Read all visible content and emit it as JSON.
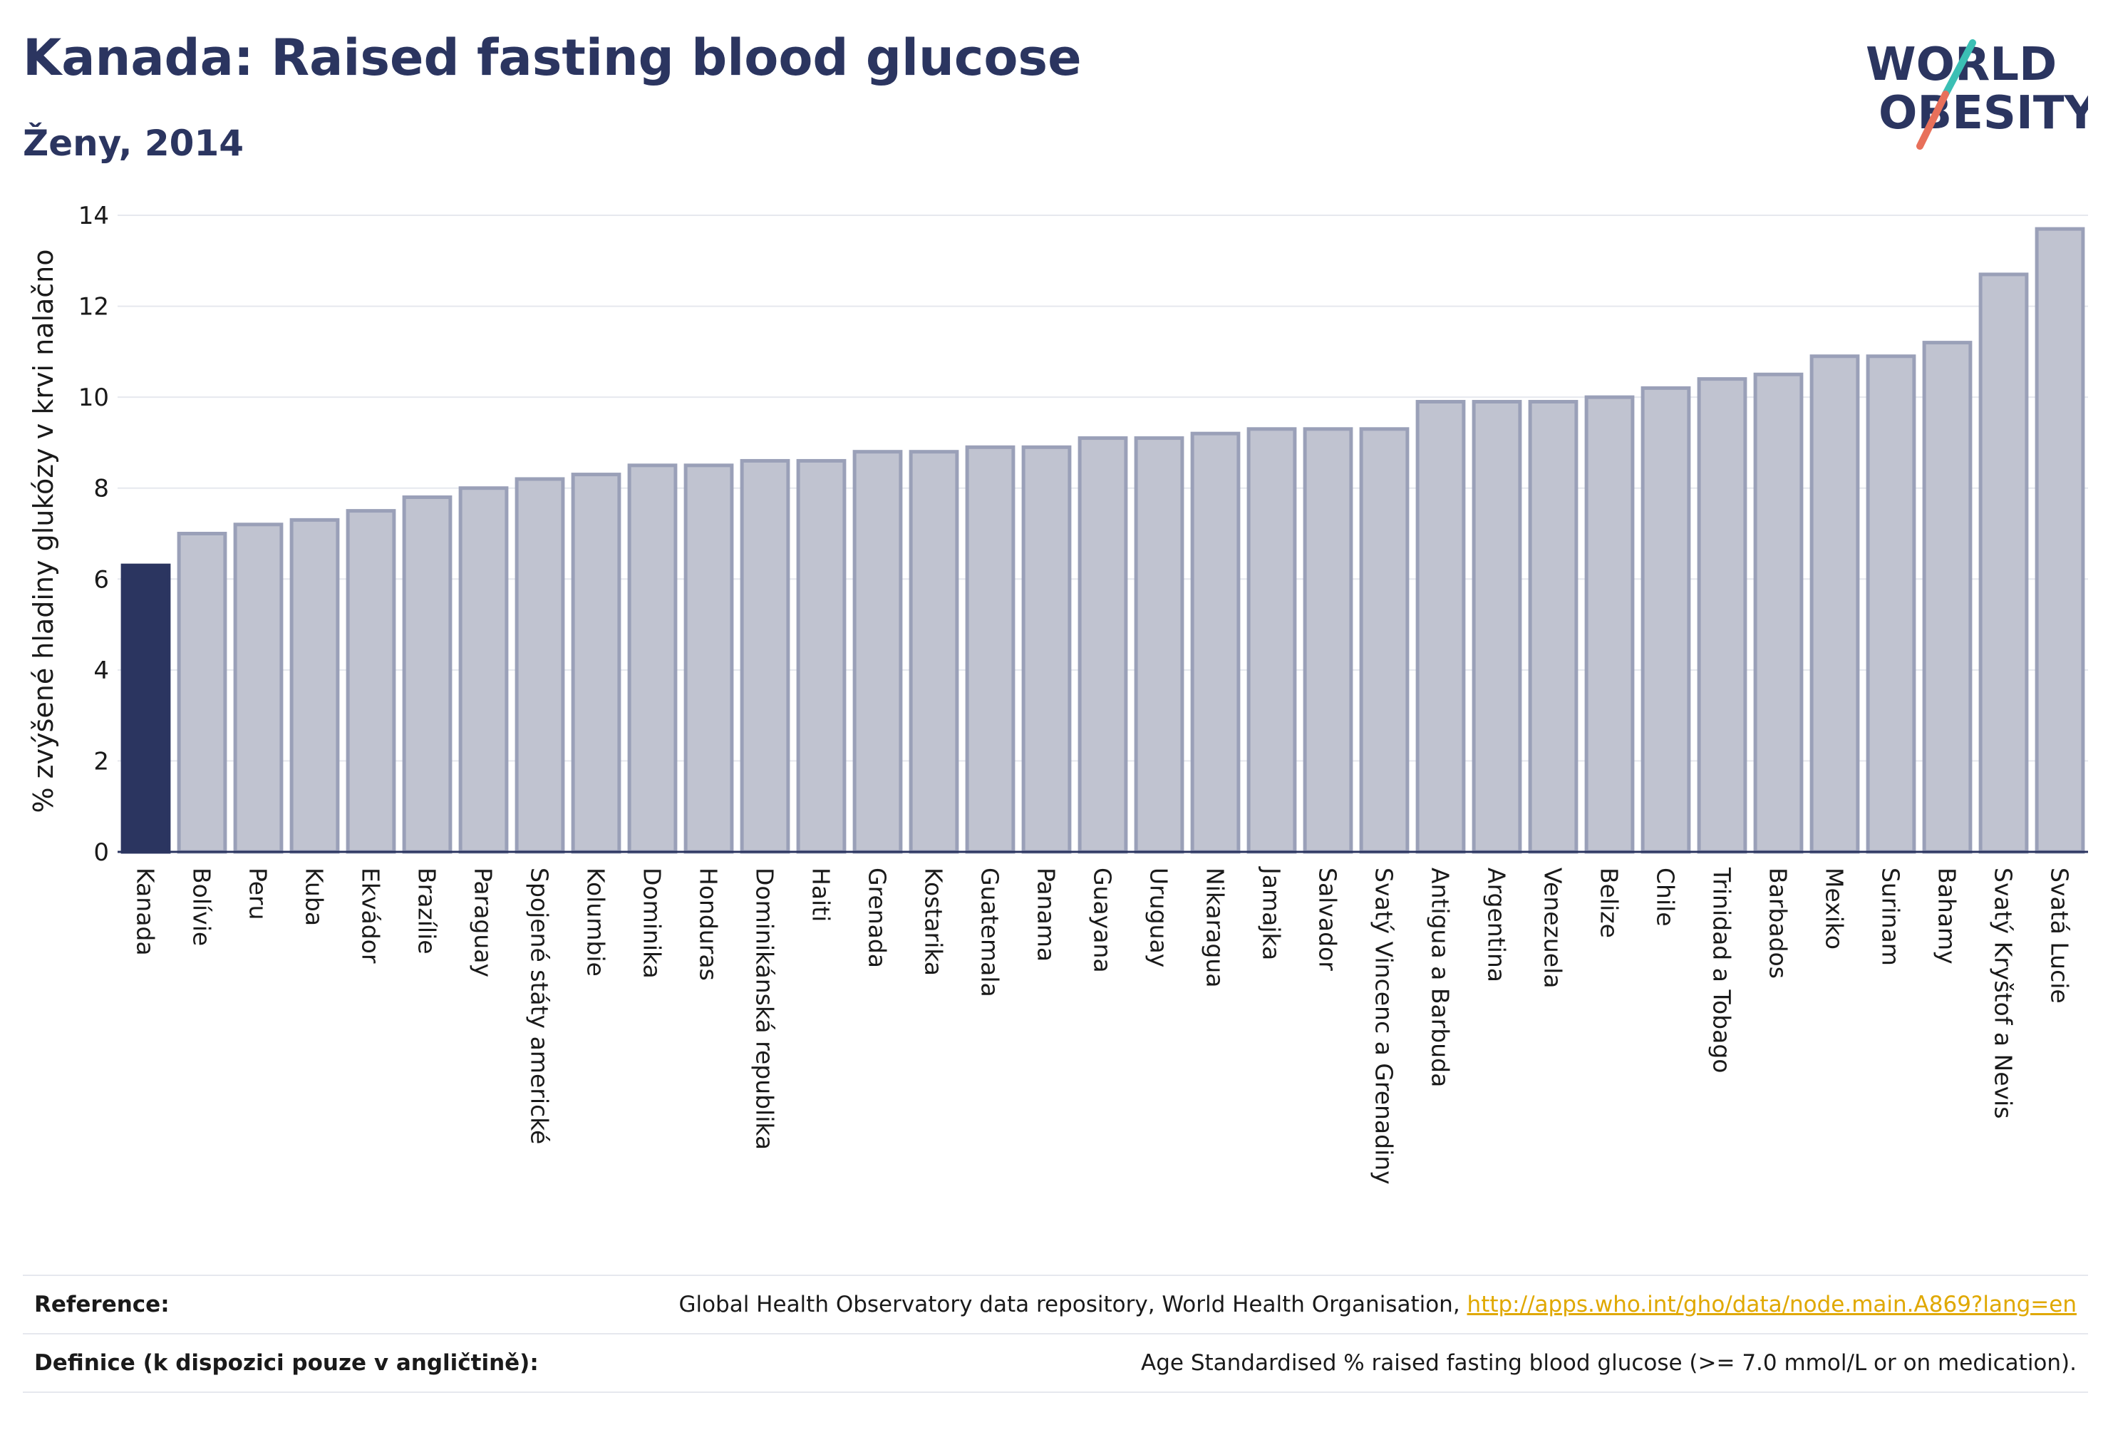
{
  "header": {
    "title": "Kanada: Raised fasting blood glucose",
    "subtitle": "Ženy, 2014"
  },
  "logo": {
    "line1": "WORLD",
    "line2": "OBESITY",
    "colors": {
      "text": "#2b3560",
      "slash_top": "#3bbfb4",
      "slash_bottom": "#e8705a"
    }
  },
  "chart_data": {
    "type": "bar",
    "ylabel": "% zvýšené hladiny glukózy v krvi nalačno",
    "ylim": [
      0,
      14
    ],
    "yticks": [
      0,
      2,
      4,
      6,
      8,
      10,
      12,
      14
    ],
    "grid": true,
    "highlight_color": "#2b3560",
    "bar_color": "#c0c3d0",
    "bar_edge_color": "#9aa0b8",
    "categories": [
      "Kanada",
      "Bolívie",
      "Peru",
      "Kuba",
      "Ekvádor",
      "Brazílie",
      "Paraguay",
      "Spojené státy americké",
      "Kolumbie",
      "Dominika",
      "Honduras",
      "Dominikánská republika",
      "Haiti",
      "Grenada",
      "Kostarika",
      "Guatemala",
      "Panama",
      "Guayana",
      "Uruguay",
      "Nikaragua",
      "Jamajka",
      "Salvador",
      "Svatý Vincenc a Grenadiny",
      "Antigua a Barbuda",
      "Argentina",
      "Venezuela",
      "Belize",
      "Chile",
      "Trinidad a Tobago",
      "Barbados",
      "Mexiko",
      "Surinam",
      "Bahamy",
      "Svatý Kryštof a Nevis",
      "Svatá Lucie"
    ],
    "values": [
      6.3,
      7.0,
      7.2,
      7.3,
      7.5,
      7.8,
      8.0,
      8.2,
      8.3,
      8.5,
      8.5,
      8.6,
      8.6,
      8.8,
      8.8,
      8.9,
      8.9,
      9.1,
      9.1,
      9.2,
      9.3,
      9.3,
      9.3,
      9.9,
      9.9,
      9.9,
      10.0,
      10.2,
      10.4,
      10.5,
      10.9,
      10.9,
      11.2,
      12.7,
      13.7
    ],
    "highlight": "Kanada"
  },
  "footer": {
    "reference_label": "Reference:",
    "reference_text": "Global Health Observatory data repository, World Health Organisation,",
    "reference_link": "http://apps.who.int/gho/data/node.main.A869?lang=en",
    "definition_label": "Definice (k dispozici pouze v angličtině):",
    "definition_text": "Age Standardised % raised fasting blood glucose (>= 7.0 mmol/L or on medication)."
  }
}
